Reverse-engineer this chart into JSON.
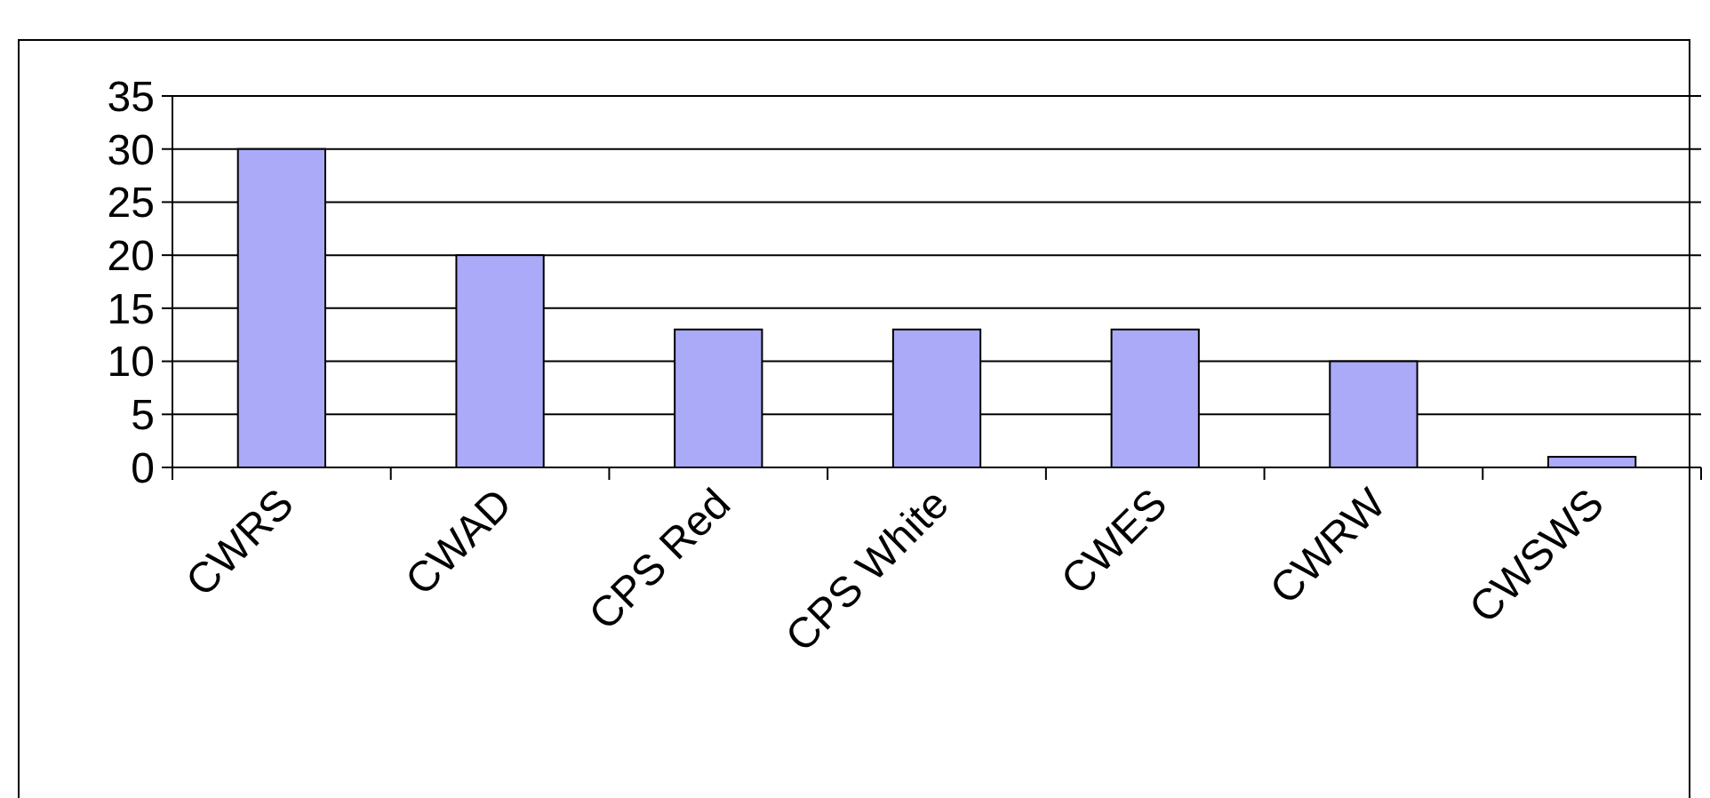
{
  "chart_data": {
    "type": "bar",
    "categories": [
      "CWRS",
      "CWAD",
      "CPS Red",
      "CPS White",
      "CWES",
      "CWRW",
      "CWSWS"
    ],
    "values": [
      30,
      20,
      13,
      13,
      13,
      10,
      1
    ],
    "color": "#aaaaf8",
    "ylim": [
      0,
      35
    ],
    "yticks": [
      0,
      5,
      10,
      15,
      20,
      25,
      30,
      35
    ],
    "grid": "y"
  }
}
